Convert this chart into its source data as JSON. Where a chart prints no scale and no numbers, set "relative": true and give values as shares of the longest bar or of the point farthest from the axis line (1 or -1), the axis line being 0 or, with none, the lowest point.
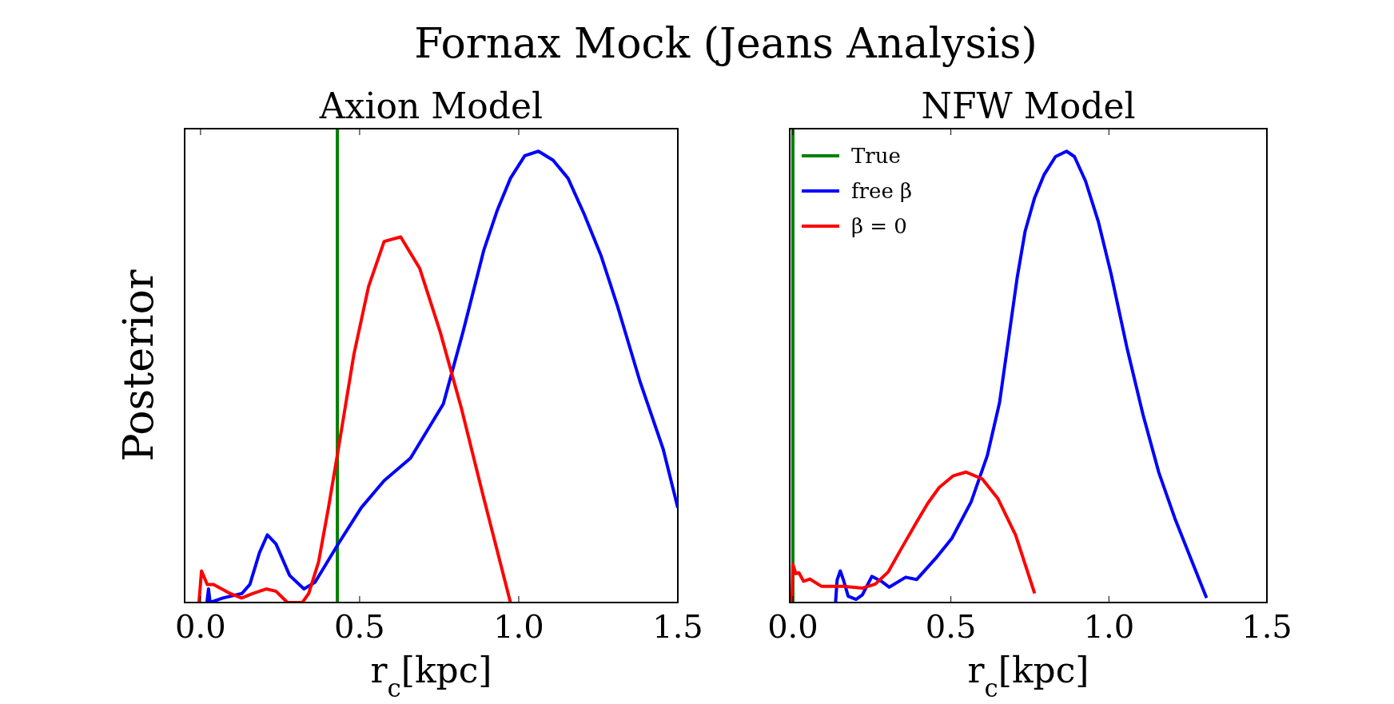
{
  "chart_data": [
    {
      "type": "line",
      "title": "Fornax Mock (Jeans Analysis)",
      "subtitle": "Axion Model",
      "xlabel": "r$_{c}$[kpc]",
      "ylabel": "Posterior",
      "relative": true,
      "legend": false,
      "grid": false,
      "xlim": [
        -0.05,
        1.5
      ],
      "xticks": [
        {
          "value": 0,
          "label": "0.0"
        },
        {
          "value": 0.5,
          "label": "0.5"
        },
        {
          "value": 1,
          "label": "1.0"
        },
        {
          "value": 1.5,
          "label": "1.5"
        }
      ],
      "ref_lines": [
        {
          "axis": "x",
          "value": 0.43,
          "color": "#008000"
        }
      ],
      "series": [
        {
          "color": "#0000ff",
          "x": [
            0.02,
            0.025,
            0.03,
            0.07,
            0.13,
            0.155,
            0.185,
            0.21,
            0.237,
            0.28,
            0.325,
            0.36,
            0.433,
            0.505,
            0.577,
            0.66,
            0.72,
            0.763,
            0.825,
            0.89,
            0.933,
            0.974,
            1.019,
            1.062,
            1.108,
            1.155,
            1.206,
            1.258,
            1.309,
            1.381,
            1.454,
            1.5
          ],
          "values": [
            0,
            0.03,
            0,
            0.01,
            0.02,
            0.04,
            0.11,
            0.15,
            0.13,
            0.06,
            0.03,
            0.045,
            0.13,
            0.21,
            0.27,
            0.32,
            0.39,
            0.44,
            0.6,
            0.78,
            0.87,
            0.94,
            0.99,
            1.0,
            0.98,
            0.94,
            0.86,
            0.77,
            0.66,
            0.49,
            0.34,
            0.21
          ]
        },
        {
          "color": "#ff0000",
          "x": [
            -0.005,
            0.003,
            0.021,
            0.041,
            0.093,
            0.129,
            0.165,
            0.206,
            0.237,
            0.273,
            0.32,
            0.34,
            0.371,
            0.402,
            0.433,
            0.482,
            0.528,
            0.577,
            0.629,
            0.689,
            0.753,
            0.82,
            0.887,
            0.974
          ],
          "values": [
            0,
            0.07,
            0.04,
            0.04,
            0.02,
            0.01,
            0.02,
            0.03,
            0.025,
            0,
            0,
            0.02,
            0.09,
            0.21,
            0.34,
            0.55,
            0.7,
            0.8,
            0.81,
            0.74,
            0.6,
            0.43,
            0.24,
            0
          ]
        }
      ]
    },
    {
      "type": "line",
      "subtitle": "NFW Model",
      "xlabel": "r$_{c}$[kpc]",
      "relative": true,
      "legend": "top left",
      "grid": false,
      "xlim": [
        -0.01,
        1.5
      ],
      "xticks": [
        {
          "value": 0,
          "label": "0.0"
        },
        {
          "value": 0.5,
          "label": "0.5"
        },
        {
          "value": 1,
          "label": "1.0"
        },
        {
          "value": 1.5,
          "label": "1.5"
        }
      ],
      "ref_lines": [
        {
          "axis": "x",
          "value": 0,
          "label": "True",
          "color": "#008000"
        }
      ],
      "series": [
        {
          "name": "free β",
          "color": "#0000ff",
          "x": [
            0.135,
            0.14,
            0.15,
            0.16,
            0.175,
            0.2,
            0.22,
            0.25,
            0.28,
            0.305,
            0.357,
            0.392,
            0.452,
            0.503,
            0.564,
            0.615,
            0.654,
            0.684,
            0.71,
            0.735,
            0.765,
            0.795,
            0.831,
            0.866,
            0.891,
            0.926,
            0.967,
            1.007,
            1.057,
            1.108,
            1.158,
            1.209,
            1.259,
            1.309
          ],
          "values": [
            0,
            0.05,
            0.07,
            0.05,
            0.014,
            0.007,
            0.017,
            0.058,
            0.047,
            0.034,
            0.056,
            0.051,
            0.098,
            0.142,
            0.223,
            0.325,
            0.443,
            0.592,
            0.721,
            0.823,
            0.897,
            0.948,
            0.988,
            1.0,
            0.988,
            0.934,
            0.843,
            0.728,
            0.565,
            0.416,
            0.288,
            0.186,
            0.098,
            0.01
          ]
        },
        {
          "name": "β = 0",
          "color": "#ff0000",
          "x": [
            -0.003,
            0.0,
            0.009,
            0.019,
            0.034,
            0.054,
            0.09,
            0.16,
            0.221,
            0.261,
            0.302,
            0.342,
            0.392,
            0.427,
            0.463,
            0.508,
            0.548,
            0.599,
            0.649,
            0.705,
            0.765
          ],
          "values": [
            0,
            0.085,
            0.064,
            0.066,
            0.047,
            0.052,
            0.036,
            0.036,
            0.032,
            0.041,
            0.068,
            0.118,
            0.179,
            0.22,
            0.255,
            0.281,
            0.289,
            0.274,
            0.23,
            0.149,
            0.02
          ]
        }
      ]
    }
  ]
}
